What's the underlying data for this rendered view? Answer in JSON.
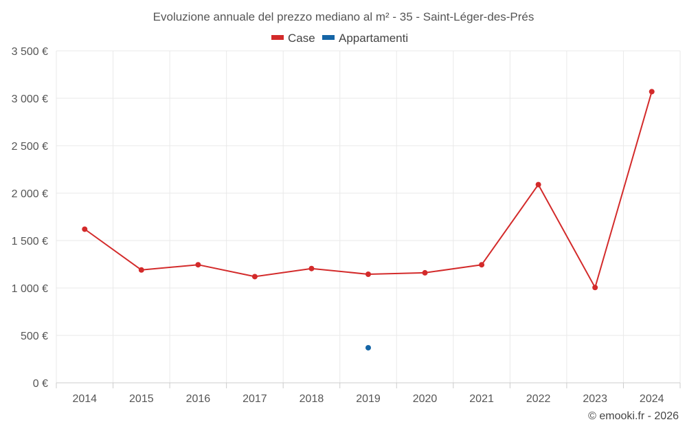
{
  "chart_data": {
    "type": "line",
    "title": "Evoluzione annuale del prezzo mediano al m² - 35 - Saint-Léger-des-Prés",
    "categories": [
      "2014",
      "2015",
      "2016",
      "2017",
      "2018",
      "2019",
      "2020",
      "2021",
      "2022",
      "2023",
      "2024"
    ],
    "ylim": [
      0,
      3500
    ],
    "yticks": [
      0,
      500,
      1000,
      1500,
      2000,
      2500,
      3000,
      3500
    ],
    "ytick_labels": [
      "0 €",
      "500 €",
      "1 000 €",
      "1 500 €",
      "2 000 €",
      "2 500 €",
      "3 000 €",
      "3 500 €"
    ],
    "xlabel": "",
    "ylabel": "",
    "grid": true,
    "legend_position": "top-center",
    "series": [
      {
        "name": "Case",
        "color": "#d32a2a",
        "values": [
          1620,
          1190,
          1245,
          1120,
          1205,
          1145,
          1160,
          1245,
          2090,
          1005,
          3070
        ]
      },
      {
        "name": "Appartamenti",
        "color": "#1565a6",
        "values": [
          null,
          null,
          null,
          null,
          null,
          370,
          null,
          null,
          null,
          null,
          null
        ]
      }
    ]
  },
  "credit": "© emooki.fr - 2026"
}
